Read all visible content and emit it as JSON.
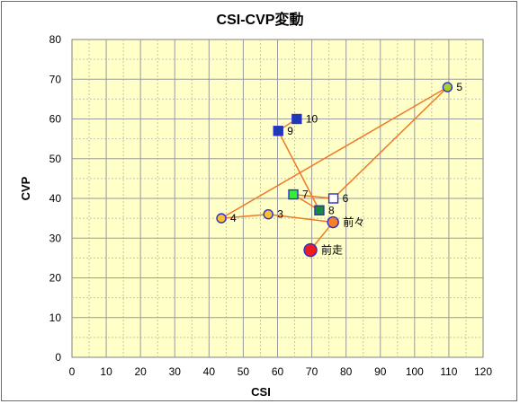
{
  "chart_data": {
    "type": "scatter",
    "title": "CSI-CVP変動",
    "xlabel": "CSI",
    "ylabel": "CVP",
    "xlim": [
      0,
      120
    ],
    "ylim": [
      0,
      80
    ],
    "x_ticks": [
      0,
      10,
      20,
      30,
      40,
      50,
      60,
      70,
      80,
      90,
      100,
      110,
      120
    ],
    "y_ticks": [
      0,
      10,
      20,
      30,
      40,
      50,
      60,
      70,
      80
    ],
    "grid": true,
    "plot_background": "#ffffc8",
    "line_color": "#f07a28",
    "path_order": [
      "10",
      "9",
      "8",
      "7",
      "6",
      "5",
      "4",
      "3",
      "前々",
      "前走"
    ],
    "points": [
      {
        "label": "前走",
        "x": 69.6,
        "y": 27,
        "marker": "circle",
        "fill": "#ee1c1c",
        "stroke": "#2d2dd0",
        "size": "large"
      },
      {
        "label": "前々",
        "x": 76.2,
        "y": 34,
        "marker": "circle",
        "fill": "#f57f2a",
        "stroke": "#2d2dd0",
        "size": "medium"
      },
      {
        "label": "3",
        "x": 57.3,
        "y": 36,
        "marker": "circle",
        "fill": "#fbc02d",
        "stroke": "#2d2dd0",
        "size": "small"
      },
      {
        "label": "4",
        "x": 43.6,
        "y": 35,
        "marker": "circle",
        "fill": "#fbc02d",
        "stroke": "#2d2dd0",
        "size": "small"
      },
      {
        "label": "5",
        "x": 109.6,
        "y": 68,
        "marker": "circle",
        "fill": "#a8d02a",
        "stroke": "#2d2dd0",
        "size": "small"
      },
      {
        "label": "6",
        "x": 76.3,
        "y": 40,
        "marker": "square",
        "fill": "#ffffff",
        "stroke": "#2d2dd0",
        "size": "small"
      },
      {
        "label": "7",
        "x": 64.6,
        "y": 41,
        "marker": "square",
        "fill": "#33ee33",
        "stroke": "#2d2dd0",
        "size": "small"
      },
      {
        "label": "8",
        "x": 72.2,
        "y": 37,
        "marker": "square",
        "fill": "#1a8a3a",
        "stroke": "#2d2dd0",
        "size": "small"
      },
      {
        "label": "9",
        "x": 60.2,
        "y": 57,
        "marker": "square",
        "fill": "#1e3ab0",
        "stroke": "#2d2dd0",
        "size": "small"
      },
      {
        "label": "10",
        "x": 65.6,
        "y": 60,
        "marker": "square",
        "fill": "#1e3ab0",
        "stroke": "#2d2dd0",
        "size": "small"
      }
    ]
  }
}
